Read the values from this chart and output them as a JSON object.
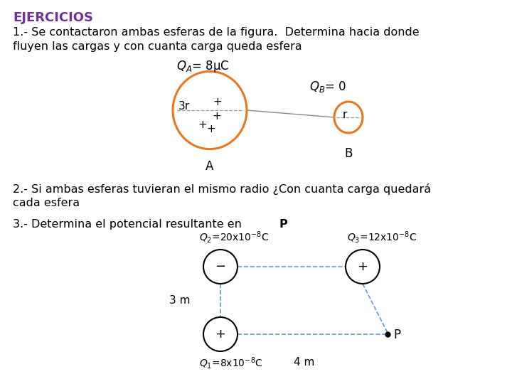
{
  "title": "EJERCICIOS",
  "title_color": "#7030A0",
  "bg_color": "#ffffff",
  "text1_line1": "1.- Se contactaron ambas esferas de la figura.  Determina hacia donde",
  "text1_line2": "fluyen las cargas y con cuanta carga queda esfera",
  "text2_line1": "2.- Si ambas esferas tuvieran el mismo radio ¿Con cuanta carga quedará",
  "text2_line2": "cada esfera",
  "text3_line1": "3.- Determina el potencial resultante en ",
  "text3_P": "P",
  "sphere_color": "#E87722",
  "sphere_linewidth": 2.2,
  "fig2_sphere_color": "#000000",
  "fig2_sphere_linewidth": 1.5,
  "dashed_color": "#5B9BD5",
  "font_size_title": 13,
  "font_size_body": 11.5,
  "font_size_diagram": 10.5,
  "font_size_small": 9.5
}
